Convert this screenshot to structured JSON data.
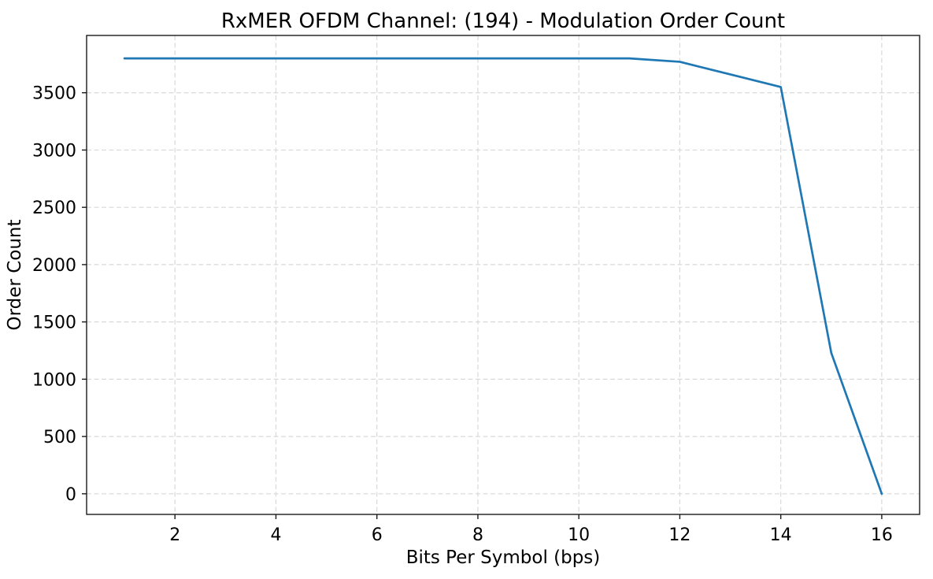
{
  "chart_data": {
    "type": "line",
    "title": "RxMER OFDM Channel: (194) - Modulation Order Count",
    "xlabel": "Bits Per Symbol (bps)",
    "ylabel": "Order Count",
    "x": [
      1,
      2,
      3,
      4,
      5,
      6,
      7,
      8,
      9,
      10,
      11,
      12,
      13,
      14,
      15,
      16
    ],
    "series": [
      {
        "name": "Order Count",
        "color": "#1f77b4",
        "values": [
          3800,
          3800,
          3800,
          3800,
          3800,
          3800,
          3800,
          3800,
          3800,
          3800,
          3800,
          3770,
          3660,
          3550,
          1230,
          0
        ]
      }
    ],
    "xticks": [
      2,
      4,
      6,
      8,
      10,
      12,
      14,
      16
    ],
    "yticks": [
      0,
      500,
      1000,
      1500,
      2000,
      2500,
      3000,
      3500
    ],
    "xlim": [
      0.25,
      16.75
    ],
    "ylim": [
      -180,
      4000
    ],
    "grid": true,
    "grid_style": "dashed",
    "legend_position": "none",
    "markers": "none",
    "colors": {
      "line": "#1f77b4",
      "grid": "#d9d9d9",
      "axis": "#1a1a1a",
      "text": "#000000",
      "background": "#ffffff"
    }
  }
}
